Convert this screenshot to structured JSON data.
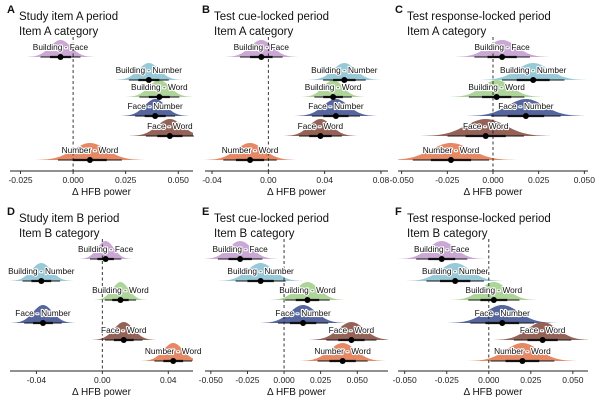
{
  "colors": {
    "Building - Face": "#c7a2d3",
    "Building - Number": "#91c6d6",
    "Building - Word": "#a9d294",
    "Face - Number": "#4c5d99",
    "Face - Word": "#8f5a4f",
    "Number - Word": "#e5825c"
  },
  "chart_data": [
    {
      "type": "ridge-interval",
      "panel_letter": "A",
      "title": "Study item A period",
      "subtitle": "Item A category",
      "xlabel": "Δ HFB power",
      "xlim": [
        -0.03,
        0.057
      ],
      "xticks": [
        -0.025,
        0,
        0.025,
        0.05
      ],
      "xtick_labels": [
        "-0.025",
        "0.000",
        "0.025",
        "0.050"
      ],
      "reference_line": 0,
      "series": [
        {
          "name": "Building - Face",
          "median": -0.006,
          "sd": 0.005
        },
        {
          "name": "Building - Number",
          "median": 0.036,
          "sd": 0.005
        },
        {
          "name": "Building - Word",
          "median": 0.041,
          "sd": 0.005
        },
        {
          "name": "Face - Number",
          "median": 0.039,
          "sd": 0.005
        },
        {
          "name": "Face - Word",
          "median": 0.046,
          "sd": 0.006
        },
        {
          "name": "Number - Word",
          "median": 0.008,
          "sd": 0.008
        }
      ]
    },
    {
      "type": "ridge-interval",
      "panel_letter": "B",
      "title": "Test cue-locked period",
      "subtitle": "Item A category",
      "xlabel": "Δ HFB power",
      "xlim": [
        -0.045,
        0.085
      ],
      "xticks": [
        -0.04,
        0,
        0.04,
        0.08
      ],
      "xtick_labels": [
        "-0.04",
        "0.00",
        "0.04",
        "0.08"
      ],
      "reference_line": 0,
      "series": [
        {
          "name": "Building - Face",
          "median": -0.005,
          "sd": 0.008
        },
        {
          "name": "Building - Number",
          "median": 0.054,
          "sd": 0.008
        },
        {
          "name": "Building - Word",
          "median": 0.046,
          "sd": 0.007
        },
        {
          "name": "Face - Number",
          "median": 0.048,
          "sd": 0.009
        },
        {
          "name": "Face - Word",
          "median": 0.037,
          "sd": 0.008
        },
        {
          "name": "Number - Word",
          "median": -0.013,
          "sd": 0.01
        }
      ]
    },
    {
      "type": "ridge-interval",
      "panel_letter": "C",
      "title": "Test response-locked period",
      "subtitle": "Item A category",
      "xlabel": "Δ HFB power",
      "xlim": [
        -0.052,
        0.052
      ],
      "xticks": [
        -0.05,
        -0.025,
        0,
        0.025,
        0.05
      ],
      "xtick_labels": [
        "-0.050",
        "-0.025",
        "0.000",
        "0.025",
        "0.050"
      ],
      "reference_line": 0,
      "series": [
        {
          "name": "Building - Face",
          "median": 0.005,
          "sd": 0.008
        },
        {
          "name": "Building - Number",
          "median": 0.022,
          "sd": 0.009
        },
        {
          "name": "Building - Word",
          "median": 0.002,
          "sd": 0.008
        },
        {
          "name": "Face - Number",
          "median": 0.018,
          "sd": 0.01
        },
        {
          "name": "Face - Word",
          "median": -0.004,
          "sd": 0.011
        },
        {
          "name": "Number - Word",
          "median": -0.023,
          "sd": 0.011
        }
      ]
    },
    {
      "type": "ridge-interval",
      "panel_letter": "D",
      "title": "Study item B period",
      "subtitle": "Item B category",
      "xlabel": "Δ HFB power",
      "xlim": [
        -0.056,
        0.055
      ],
      "xticks": [
        -0.04,
        0,
        0.04
      ],
      "xtick_labels": [
        "-0.04",
        "0.00",
        "0.04"
      ],
      "reference_line": 0,
      "series": [
        {
          "name": "Building - Face",
          "median": 0.002,
          "sd": 0.005
        },
        {
          "name": "Building - Number",
          "median": -0.037,
          "sd": 0.006
        },
        {
          "name": "Building - Word",
          "median": 0.011,
          "sd": 0.005
        },
        {
          "name": "Face - Number",
          "median": -0.036,
          "sd": 0.006
        },
        {
          "name": "Face - Word",
          "median": 0.013,
          "sd": 0.006
        },
        {
          "name": "Number - Word",
          "median": 0.043,
          "sd": 0.006
        }
      ]
    },
    {
      "type": "ridge-interval",
      "panel_letter": "E",
      "title": "Test cue-locked period",
      "subtitle": "Item B category",
      "xlabel": "Δ HFB power",
      "xlim": [
        -0.054,
        0.071
      ],
      "xticks": [
        -0.05,
        -0.025,
        0,
        0.025,
        0.05
      ],
      "xtick_labels": [
        "-0.050",
        "-0.025",
        "0.000",
        "0.025",
        "0.050"
      ],
      "reference_line": 0,
      "series": [
        {
          "name": "Building - Face",
          "median": -0.03,
          "sd": 0.008
        },
        {
          "name": "Building - Number",
          "median": -0.016,
          "sd": 0.009
        },
        {
          "name": "Building - Word",
          "median": 0.016,
          "sd": 0.008
        },
        {
          "name": "Face - Number",
          "median": 0.013,
          "sd": 0.009
        },
        {
          "name": "Face - Word",
          "median": 0.046,
          "sd": 0.009
        },
        {
          "name": "Number - Word",
          "median": 0.04,
          "sd": 0.009
        }
      ]
    },
    {
      "type": "ridge-interval",
      "panel_letter": "F",
      "title": "Test response-locked period",
      "subtitle": "Item B category",
      "xlabel": "Δ HFB power",
      "xlim": [
        -0.054,
        0.059
      ],
      "xticks": [
        -0.05,
        -0.025,
        0,
        0.025,
        0.05
      ],
      "xtick_labels": [
        "-0.050",
        "-0.025",
        "0.000",
        "0.025",
        "0.050"
      ],
      "reference_line": 0,
      "series": [
        {
          "name": "Building - Face",
          "median": -0.028,
          "sd": 0.008
        },
        {
          "name": "Building - Number",
          "median": -0.02,
          "sd": 0.009
        },
        {
          "name": "Building - Word",
          "median": 0.003,
          "sd": 0.008
        },
        {
          "name": "Face - Number",
          "median": 0.008,
          "sd": 0.01
        },
        {
          "name": "Face - Word",
          "median": 0.032,
          "sd": 0.009
        },
        {
          "name": "Number - Word",
          "median": 0.02,
          "sd": 0.01
        }
      ]
    }
  ]
}
